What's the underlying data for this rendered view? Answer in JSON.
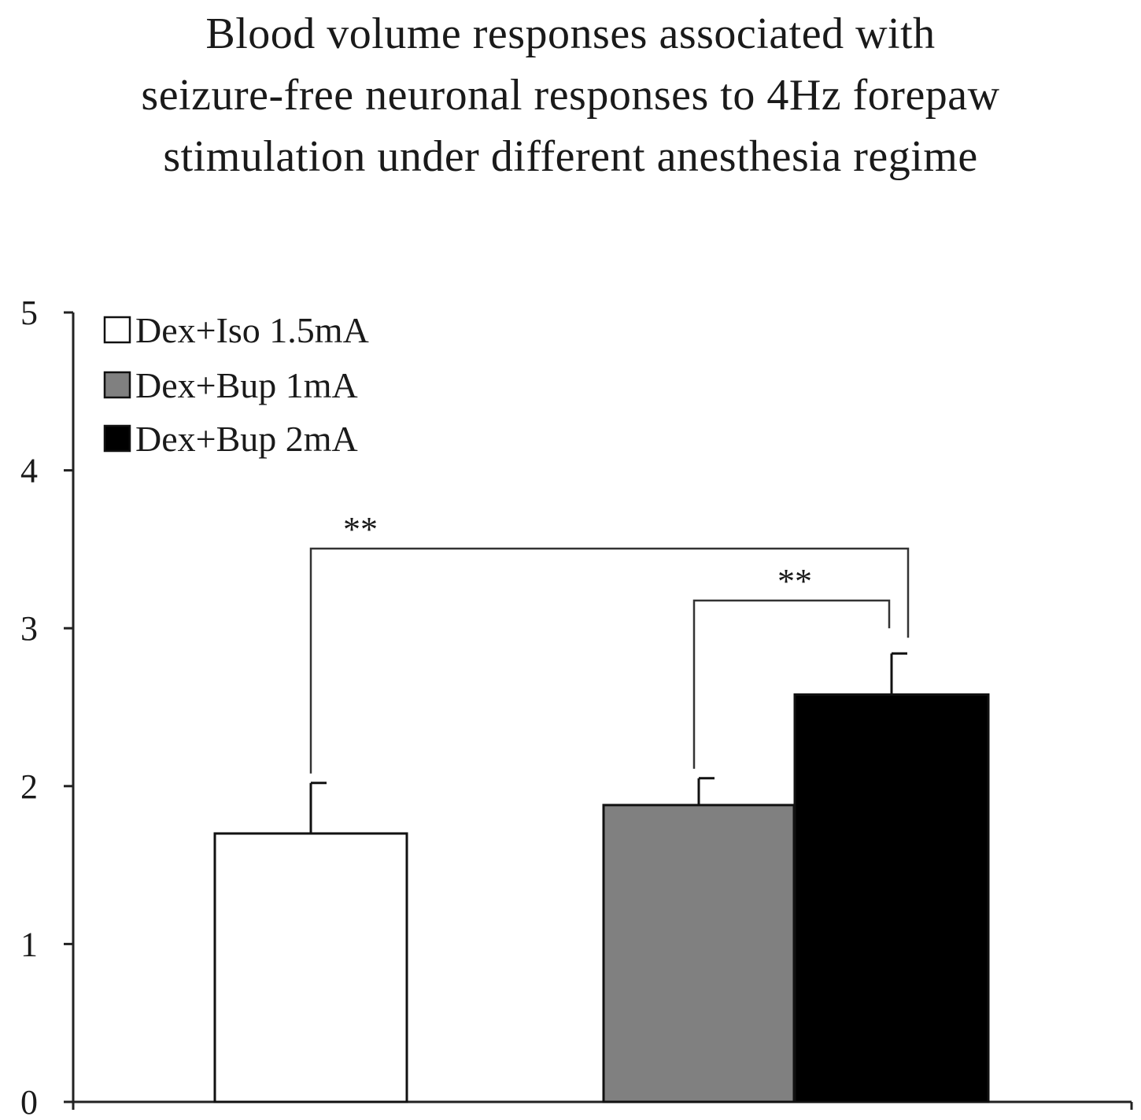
{
  "chart_data": {
    "type": "bar",
    "title_lines": [
      "Blood volume responses associated with",
      "seizure-free neuronal responses to 4Hz forepaw",
      "stimulation under different anesthesia regime"
    ],
    "xlabel": "",
    "ylabel": "",
    "ylim": [
      0,
      5
    ],
    "y_ticks": [
      0,
      1,
      2,
      3,
      4,
      5
    ],
    "y_tick_labels": [
      "0",
      "1",
      "2",
      "3",
      "4",
      "5"
    ],
    "legend_position": "top-left",
    "series": [
      {
        "name": "Dex+Iso 1.5mA",
        "color": "#ffffff",
        "value": 1.7,
        "error": 0.32
      },
      {
        "name": "Dex+Bup 1mA",
        "color": "#808080",
        "value": 1.88,
        "error": 0.17
      },
      {
        "name": "Dex+Bup 2mA",
        "color": "#000000",
        "value": 2.58,
        "error": 0.26
      }
    ],
    "significance": [
      {
        "from": 0,
        "to": 2,
        "label": "**"
      },
      {
        "from": 1,
        "to": 2,
        "label": "**"
      }
    ]
  }
}
